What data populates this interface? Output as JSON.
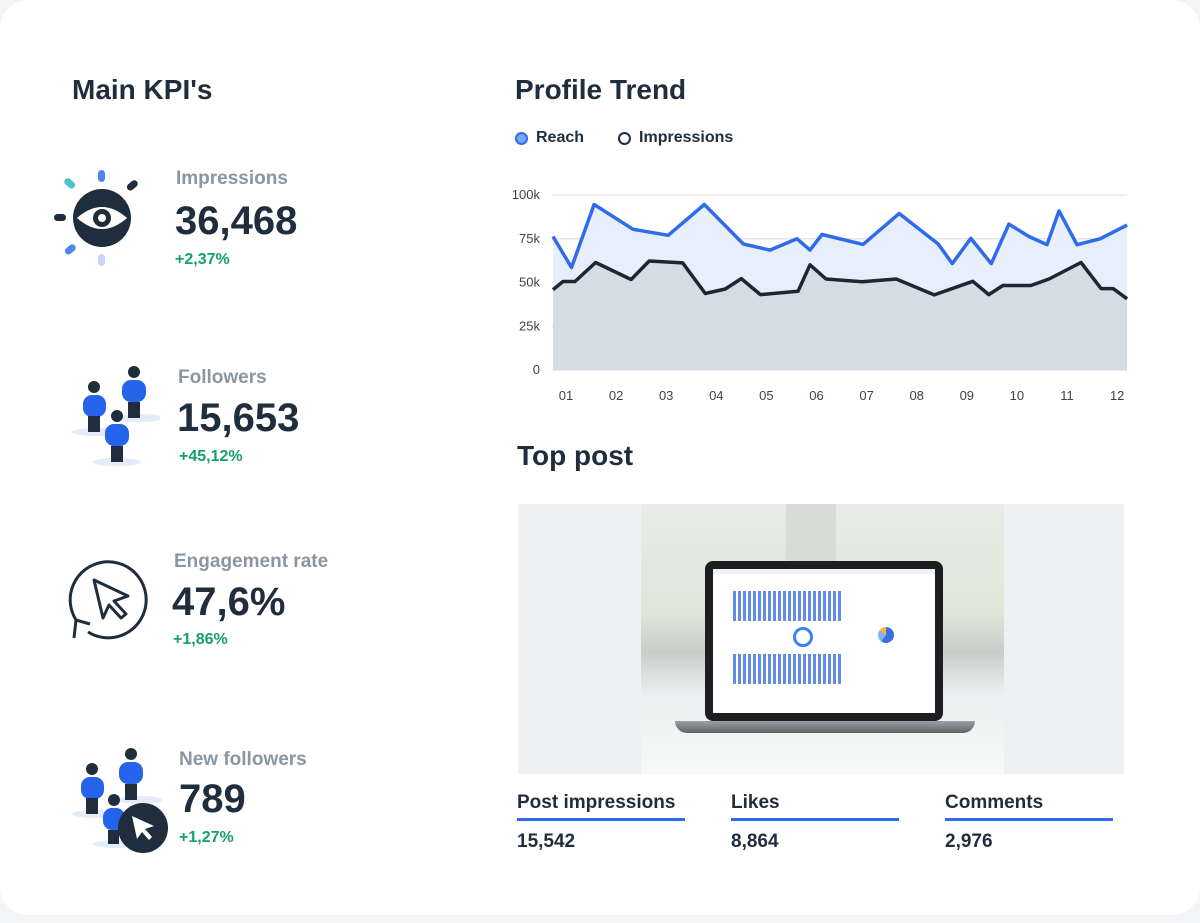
{
  "kpis": {
    "title": "Main KPI's",
    "items": [
      {
        "label": "Impressions",
        "value": "36,468",
        "change": "+2,37%",
        "icon": "eye-icon"
      },
      {
        "label": "Followers",
        "value": "15,653",
        "change": "+45,12%",
        "icon": "people-icon"
      },
      {
        "label": "Engagement rate",
        "value": "47,6%",
        "change": "+1,86%",
        "icon": "cursor-circle-icon"
      },
      {
        "label": "New followers",
        "value": "789",
        "change": "+1,27%",
        "icon": "people-cursor-icon"
      }
    ]
  },
  "trend": {
    "title": "Profile Trend"
  },
  "chart_data": {
    "type": "area",
    "title": "Profile Trend",
    "legend_position": "top-left",
    "grid": true,
    "x_ticks": [
      "01",
      "02",
      "03",
      "04",
      "05",
      "06",
      "07",
      "08",
      "09",
      "10",
      "11",
      "12"
    ],
    "y_ticks": [
      "0",
      "25k",
      "50k",
      "75k",
      "100k"
    ],
    "ylim": [
      0,
      100000
    ],
    "series": [
      {
        "name": "Reach",
        "color": "#2f6bea",
        "x": [
          0.74,
          1.11,
          1.56,
          2.34,
          3.04,
          3.76,
          4.54,
          5.07,
          5.61,
          5.87,
          6.11,
          6.93,
          7.65,
          8.43,
          8.71,
          9.08,
          9.49,
          9.84,
          10.24,
          10.6,
          10.84,
          11.2,
          11.66,
          12.2
        ],
        "y": [
          76300,
          58600,
          94600,
          80400,
          77000,
          94600,
          72000,
          68500,
          75000,
          68500,
          77400,
          71800,
          89400,
          72000,
          60800,
          75200,
          60800,
          83400,
          76300,
          71600,
          90900,
          71600,
          75000,
          82800
        ]
      },
      {
        "name": "Impressions",
        "color": "#1f2630",
        "x": [
          0.74,
          0.94,
          1.18,
          1.59,
          2.3,
          2.66,
          3.33,
          3.78,
          4.18,
          4.5,
          4.88,
          5.63,
          5.87,
          6.19,
          6.91,
          7.59,
          8.35,
          9.12,
          9.44,
          9.72,
          10.28,
          10.64,
          11.28,
          11.68,
          11.92,
          12.2
        ],
        "y": [
          45900,
          50600,
          50600,
          61400,
          51700,
          62300,
          61200,
          43700,
          46300,
          52200,
          43100,
          45000,
          60100,
          52000,
          50400,
          52000,
          42900,
          50700,
          43100,
          48300,
          48300,
          52000,
          61400,
          46500,
          46500,
          40700
        ]
      }
    ]
  },
  "top_post": {
    "title": "Top post",
    "stats": [
      {
        "label": "Post impressions",
        "value": "15,542"
      },
      {
        "label": "Likes",
        "value": "8,864"
      },
      {
        "label": "Comments",
        "value": "2,976"
      }
    ]
  }
}
